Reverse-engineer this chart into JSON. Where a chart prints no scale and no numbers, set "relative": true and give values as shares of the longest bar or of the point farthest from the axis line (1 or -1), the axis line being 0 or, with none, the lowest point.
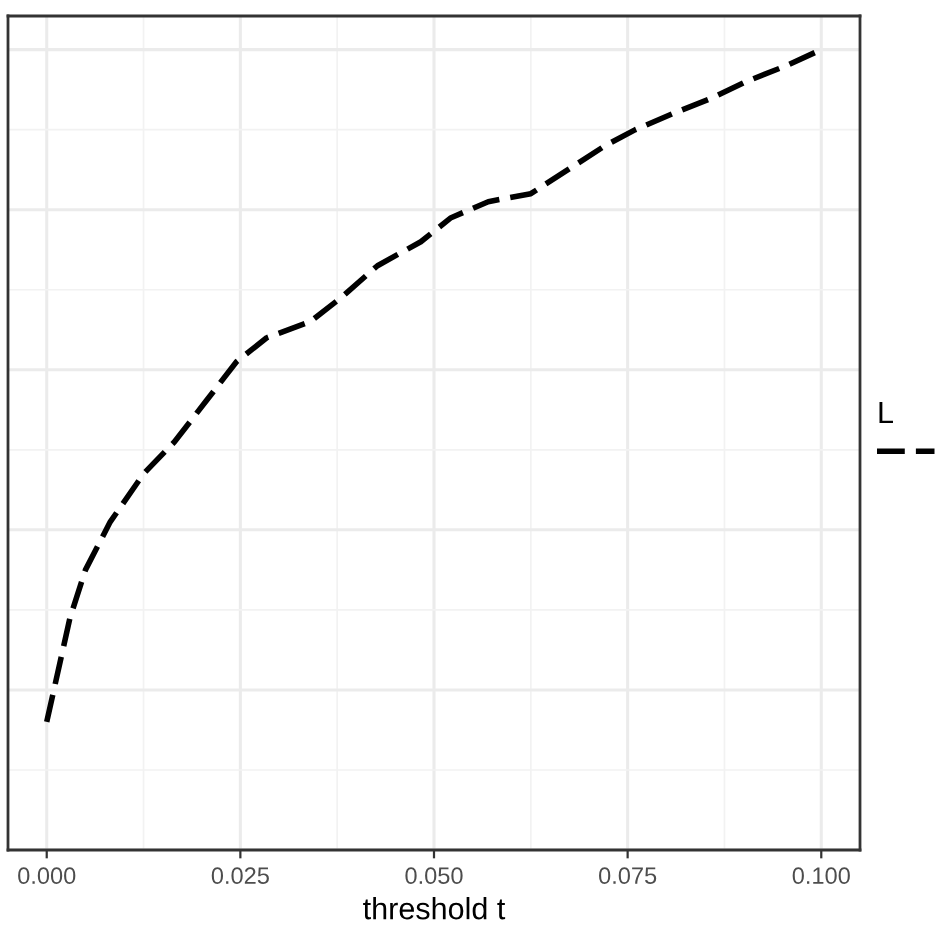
{
  "chart_data": {
    "type": "line",
    "xlabel": "threshold t",
    "legend_title": "L",
    "relative": true,
    "grid": true,
    "line_style": "dashed",
    "tick_labels": "x",
    "xlim": [
      -0.005,
      0.105
    ],
    "xticks": [
      {
        "value": 0,
        "label": "0.000"
      },
      0.025,
      {
        "value": 0.05,
        "label": "0.050"
      },
      0.075,
      {
        "value": 0.1,
        "label": "0.100"
      }
    ],
    "x": [
      0.0,
      0.003,
      0.005,
      0.0082,
      0.0125,
      0.0165,
      0.0205,
      0.0245,
      0.0284,
      0.034,
      0.038,
      0.0427,
      0.0483,
      0.0522,
      0.057,
      0.0625,
      0.0673,
      0.0721,
      0.076,
      0.0808,
      0.086,
      0.0903,
      0.0955,
      0.1
    ],
    "series": [
      {
        "color": "#000000",
        "values": [
          0.16,
          0.29,
          0.35,
          0.41,
          0.47,
          0.51,
          0.56,
          0.61,
          0.64,
          0.66,
          0.69,
          0.73,
          0.76,
          0.79,
          0.81,
          0.82,
          0.85,
          0.88,
          0.9,
          0.92,
          0.94,
          0.96,
          0.98,
          1.0
        ]
      }
    ]
  }
}
